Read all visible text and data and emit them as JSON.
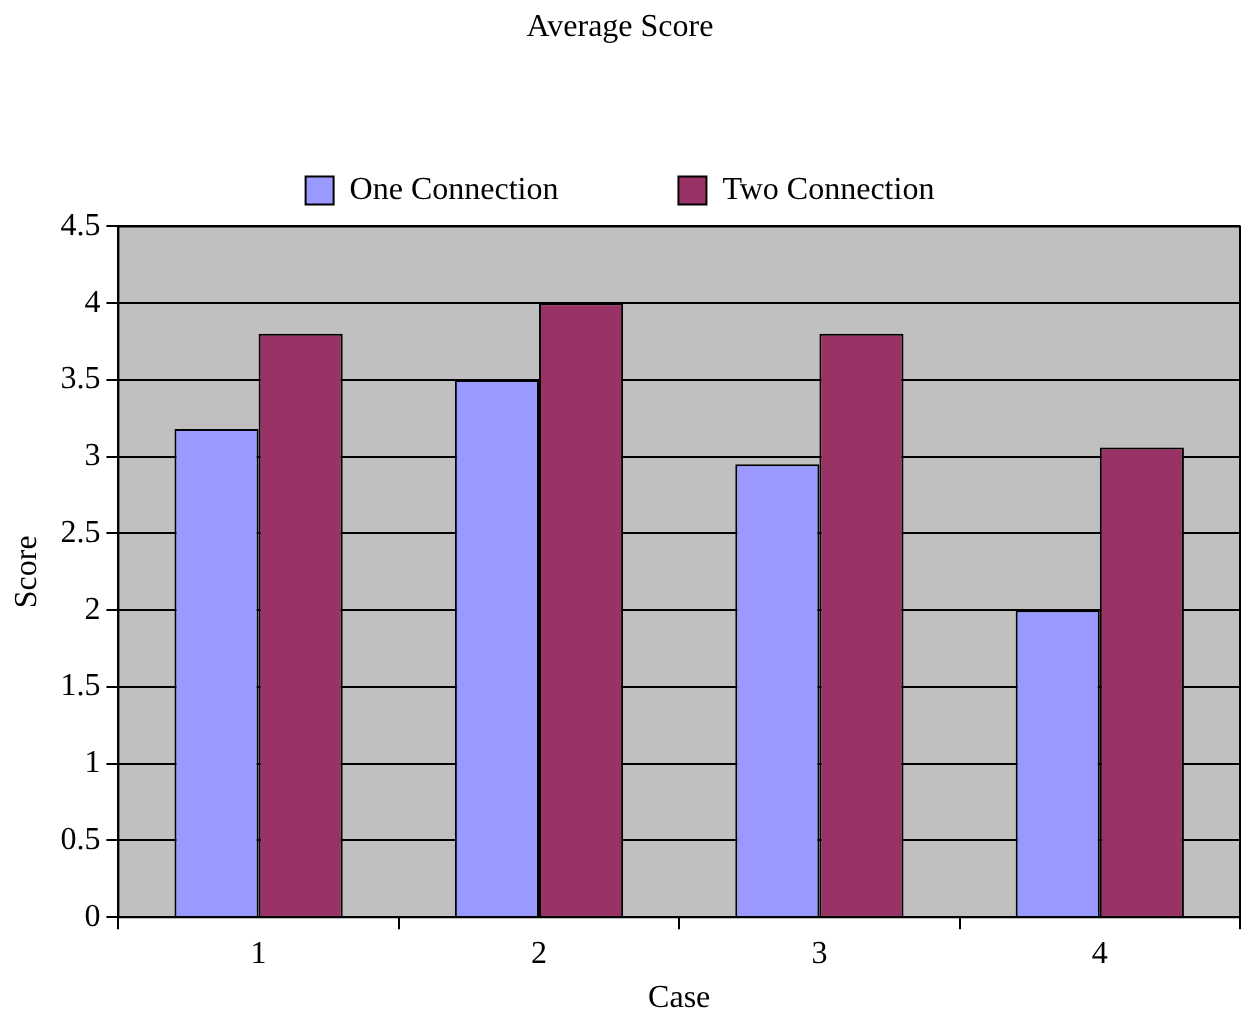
{
  "chart_data": {
    "type": "bar",
    "title": "Average Score",
    "xlabel": "Case",
    "ylabel": "Score",
    "categories": [
      "1",
      "2",
      "3",
      "4"
    ],
    "series": [
      {
        "name": "One Connection",
        "color": "#9999ff",
        "values": [
          3.18,
          3.5,
          2.95,
          2.0
        ]
      },
      {
        "name": "Two Connection",
        "color": "#993366",
        "values": [
          3.8,
          4.0,
          3.8,
          3.06
        ]
      }
    ],
    "ylim": [
      0,
      4.5
    ],
    "yticks": [
      0,
      0.5,
      1,
      1.5,
      2,
      2.5,
      3,
      3.5,
      4,
      4.5
    ],
    "grid": "y",
    "legend": "top"
  }
}
